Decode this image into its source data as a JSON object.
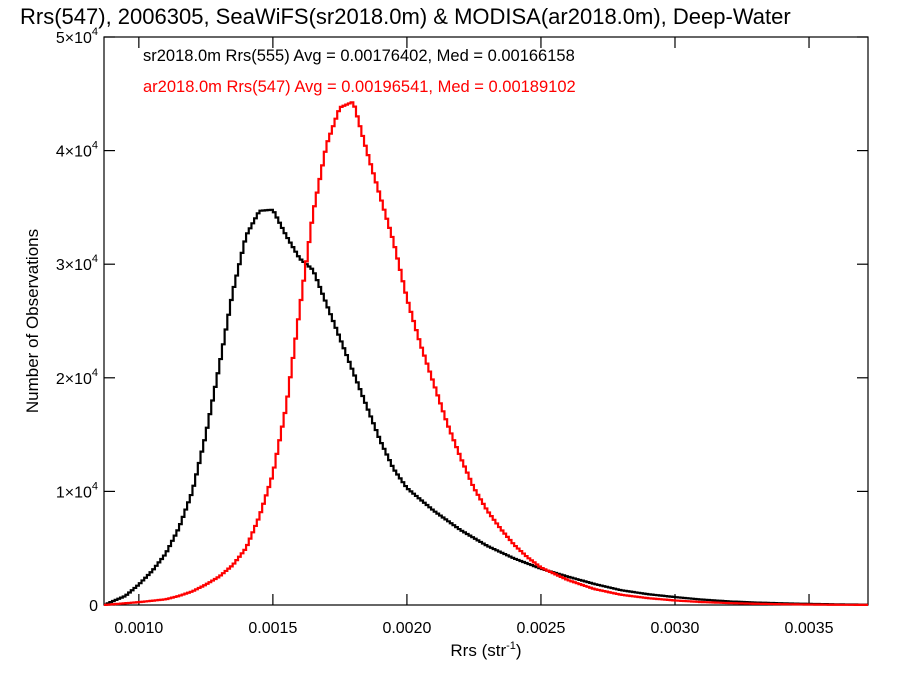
{
  "chart_data": {
    "type": "histogram-step",
    "title": "Rrs(547), 2006305, SeaWiFS(sr2018.0m) & MODISA(ar2018.0m), Deep-Water",
    "xlabel": "Rrs (str",
    "xlabel_sup": "-1",
    "xlabel_close": ")",
    "ylabel": "Number of Observations",
    "xlim": [
      0.00087,
      0.00372
    ],
    "ylim": [
      0,
      50000
    ],
    "grid": false,
    "x_ticks": [
      {
        "value": 0.001,
        "label": "0.0010"
      },
      {
        "value": 0.0015,
        "label": "0.0015"
      },
      {
        "value": 0.002,
        "label": "0.0020"
      },
      {
        "value": 0.0025,
        "label": "0.0025"
      },
      {
        "value": 0.003,
        "label": "0.0030"
      },
      {
        "value": 0.0035,
        "label": "0.0035"
      }
    ],
    "y_ticks": [
      {
        "value": 0,
        "mant": "0",
        "exp": ""
      },
      {
        "value": 10000,
        "mant": "1×10",
        "exp": "4"
      },
      {
        "value": 20000,
        "mant": "2×10",
        "exp": "4"
      },
      {
        "value": 30000,
        "mant": "3×10",
        "exp": "4"
      },
      {
        "value": 40000,
        "mant": "4×10",
        "exp": "4"
      },
      {
        "value": 50000,
        "mant": "5×10",
        "exp": "4"
      }
    ],
    "annotations": [
      {
        "text": "sr2018.0m Rrs(555) Avg = 0.00176402, Med = 0.00166158",
        "color": "#000000"
      },
      {
        "text": "ar2018.0m Rrs(547) Avg = 0.00196541, Med = 0.00189102",
        "color": "#ff0000"
      }
    ],
    "series": [
      {
        "color": "#000000",
        "x": [
          0.00087,
          0.00095,
          0.001,
          0.00105,
          0.0011,
          0.00115,
          0.0012,
          0.00125,
          0.0013,
          0.00135,
          0.0014,
          0.00145,
          0.0015,
          0.00155,
          0.0016,
          0.00165,
          0.0017,
          0.00175,
          0.0018,
          0.00185,
          0.0019,
          0.00195,
          0.002,
          0.0021,
          0.0022,
          0.0023,
          0.0024,
          0.0025,
          0.0026,
          0.0027,
          0.0028,
          0.0029,
          0.003,
          0.0031,
          0.0032,
          0.0033,
          0.0034,
          0.0035,
          0.0036,
          0.00372
        ],
        "y": [
          0,
          800,
          1800,
          3000,
          4500,
          6800,
          10000,
          15000,
          21000,
          27500,
          32500,
          34700,
          34800,
          32500,
          30500,
          29500,
          26500,
          23500,
          20500,
          17500,
          14500,
          12000,
          10300,
          8300,
          6600,
          5200,
          4100,
          3200,
          2500,
          1850,
          1300,
          950,
          700,
          480,
          320,
          220,
          150,
          100,
          60,
          30
        ]
      },
      {
        "color": "#ff0000",
        "x": [
          0.00087,
          0.001,
          0.0011,
          0.00115,
          0.0012,
          0.00125,
          0.0013,
          0.00135,
          0.0014,
          0.00145,
          0.0015,
          0.00155,
          0.0016,
          0.00165,
          0.0017,
          0.00175,
          0.0018,
          0.00185,
          0.0019,
          0.00195,
          0.002,
          0.00205,
          0.0021,
          0.00215,
          0.0022,
          0.00225,
          0.0023,
          0.00235,
          0.0024,
          0.00245,
          0.0025,
          0.0026,
          0.0027,
          0.0028,
          0.0029,
          0.003,
          0.0031,
          0.0032,
          0.0033,
          0.0034,
          0.0035,
          0.0036,
          0.00372
        ],
        "y": [
          0,
          250,
          500,
          800,
          1200,
          1800,
          2500,
          3500,
          5000,
          7800,
          11500,
          17500,
          26000,
          34500,
          40500,
          43800,
          44300,
          40000,
          36000,
          32000,
          27000,
          23000,
          19500,
          16000,
          13000,
          10300,
          8300,
          6700,
          5300,
          4200,
          3300,
          2200,
          1400,
          900,
          600,
          400,
          260,
          170,
          110,
          70,
          40,
          20,
          10
        ]
      }
    ]
  }
}
